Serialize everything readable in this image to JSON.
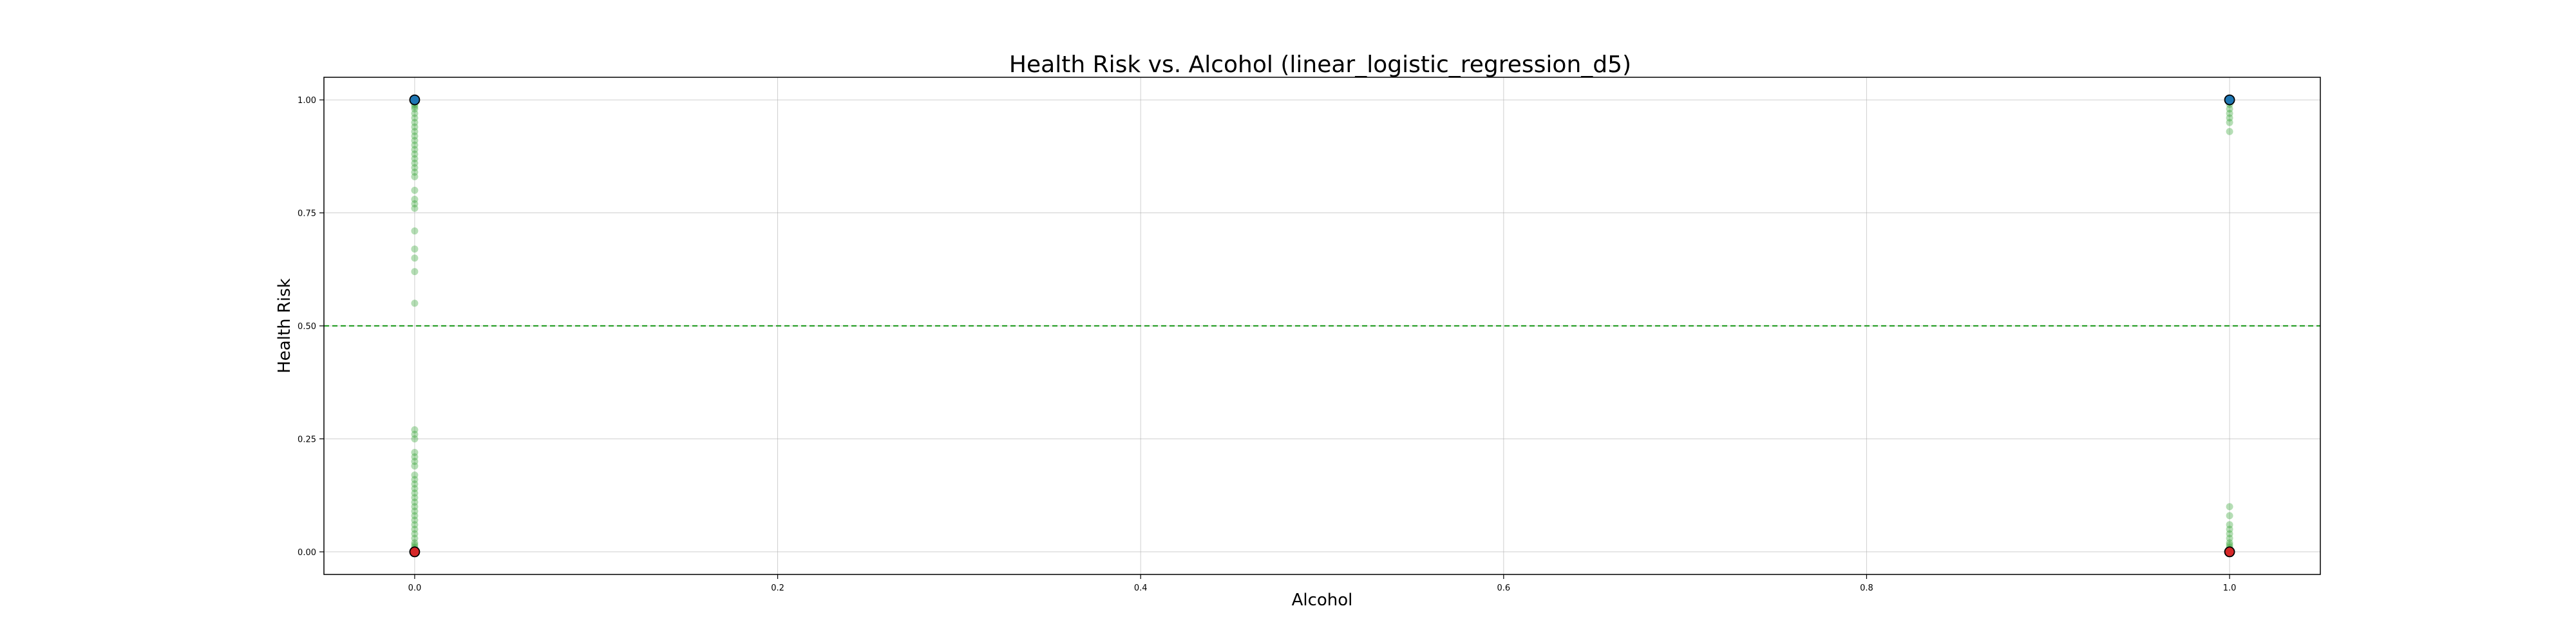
{
  "chart_data": {
    "type": "scatter",
    "title": "Health Risk vs. Alcohol (linear_logistic_regression_d5)",
    "xlabel": "Alcohol",
    "ylabel": "Health Risk",
    "xlim": [
      -0.05,
      1.05
    ],
    "ylim": [
      -0.05,
      1.05
    ],
    "xticks": [
      "0.0",
      "0.2",
      "0.4",
      "0.6",
      "0.8",
      "1.0"
    ],
    "yticks": [
      "0.00",
      "0.25",
      "0.50",
      "0.75",
      "1.00"
    ],
    "xtick_values": [
      0.0,
      0.2,
      0.4,
      0.6,
      0.8,
      1.0
    ],
    "ytick_values": [
      0.0,
      0.25,
      0.5,
      0.75,
      1.0
    ],
    "grid": true,
    "threshold": {
      "y": 0.5,
      "style": "dashed",
      "color": "#2ca02c"
    },
    "series": [
      {
        "marker": "green-dots",
        "color": "#2ca02c",
        "points": [
          {
            "x": 0.0,
            "y": 1.0
          },
          {
            "x": 0.0,
            "y": 0.995
          },
          {
            "x": 0.0,
            "y": 0.99
          },
          {
            "x": 0.0,
            "y": 0.985
          },
          {
            "x": 0.0,
            "y": 0.98
          },
          {
            "x": 0.0,
            "y": 0.97
          },
          {
            "x": 0.0,
            "y": 0.96
          },
          {
            "x": 0.0,
            "y": 0.95
          },
          {
            "x": 0.0,
            "y": 0.94
          },
          {
            "x": 0.0,
            "y": 0.93
          },
          {
            "x": 0.0,
            "y": 0.92
          },
          {
            "x": 0.0,
            "y": 0.91
          },
          {
            "x": 0.0,
            "y": 0.9
          },
          {
            "x": 0.0,
            "y": 0.89
          },
          {
            "x": 0.0,
            "y": 0.88
          },
          {
            "x": 0.0,
            "y": 0.87
          },
          {
            "x": 0.0,
            "y": 0.86
          },
          {
            "x": 0.0,
            "y": 0.85
          },
          {
            "x": 0.0,
            "y": 0.84
          },
          {
            "x": 0.0,
            "y": 0.83
          },
          {
            "x": 0.0,
            "y": 0.8
          },
          {
            "x": 0.0,
            "y": 0.78
          },
          {
            "x": 0.0,
            "y": 0.77
          },
          {
            "x": 0.0,
            "y": 0.76
          },
          {
            "x": 0.0,
            "y": 0.71
          },
          {
            "x": 0.0,
            "y": 0.67
          },
          {
            "x": 0.0,
            "y": 0.65
          },
          {
            "x": 0.0,
            "y": 0.62
          },
          {
            "x": 0.0,
            "y": 0.55
          },
          {
            "x": 0.0,
            "y": 0.27
          },
          {
            "x": 0.0,
            "y": 0.26
          },
          {
            "x": 0.0,
            "y": 0.25
          },
          {
            "x": 0.0,
            "y": 0.22
          },
          {
            "x": 0.0,
            "y": 0.21
          },
          {
            "x": 0.0,
            "y": 0.2
          },
          {
            "x": 0.0,
            "y": 0.19
          },
          {
            "x": 0.0,
            "y": 0.17
          },
          {
            "x": 0.0,
            "y": 0.16
          },
          {
            "x": 0.0,
            "y": 0.15
          },
          {
            "x": 0.0,
            "y": 0.14
          },
          {
            "x": 0.0,
            "y": 0.13
          },
          {
            "x": 0.0,
            "y": 0.12
          },
          {
            "x": 0.0,
            "y": 0.11
          },
          {
            "x": 0.0,
            "y": 0.1
          },
          {
            "x": 0.0,
            "y": 0.09
          },
          {
            "x": 0.0,
            "y": 0.08
          },
          {
            "x": 0.0,
            "y": 0.07
          },
          {
            "x": 0.0,
            "y": 0.06
          },
          {
            "x": 0.0,
            "y": 0.05
          },
          {
            "x": 0.0,
            "y": 0.04
          },
          {
            "x": 0.0,
            "y": 0.03
          },
          {
            "x": 0.0,
            "y": 0.02
          },
          {
            "x": 0.0,
            "y": 0.015
          },
          {
            "x": 0.0,
            "y": 0.01
          },
          {
            "x": 0.0,
            "y": 0.005
          },
          {
            "x": 0.0,
            "y": 0.0
          },
          {
            "x": 1.0,
            "y": 1.0
          },
          {
            "x": 1.0,
            "y": 0.995
          },
          {
            "x": 1.0,
            "y": 0.99
          },
          {
            "x": 1.0,
            "y": 0.98
          },
          {
            "x": 1.0,
            "y": 0.97
          },
          {
            "x": 1.0,
            "y": 0.96
          },
          {
            "x": 1.0,
            "y": 0.95
          },
          {
            "x": 1.0,
            "y": 0.93
          },
          {
            "x": 1.0,
            "y": 0.1
          },
          {
            "x": 1.0,
            "y": 0.08
          },
          {
            "x": 1.0,
            "y": 0.06
          },
          {
            "x": 1.0,
            "y": 0.05
          },
          {
            "x": 1.0,
            "y": 0.04
          },
          {
            "x": 1.0,
            "y": 0.03
          },
          {
            "x": 1.0,
            "y": 0.02
          },
          {
            "x": 1.0,
            "y": 0.015
          },
          {
            "x": 1.0,
            "y": 0.01
          },
          {
            "x": 1.0,
            "y": 0.005
          },
          {
            "x": 1.0,
            "y": 0.0
          }
        ]
      },
      {
        "marker": "blue-circles",
        "color": "#1f77b4",
        "points": [
          {
            "x": 0.0,
            "y": 1.0
          },
          {
            "x": 1.0,
            "y": 1.0
          }
        ]
      },
      {
        "marker": "orange-circles",
        "color": "#d62728",
        "points": [
          {
            "x": 0.0,
            "y": 0.0
          },
          {
            "x": 1.0,
            "y": 0.0
          }
        ]
      }
    ]
  }
}
